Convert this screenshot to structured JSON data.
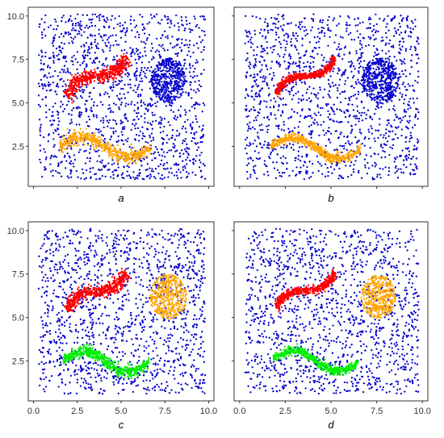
{
  "chart_data": [
    {
      "type": "scatter",
      "label": "a",
      "xlim": [
        -0.3,
        10.3
      ],
      "ylim": [
        0.2,
        10.5
      ],
      "x_ticks": [
        "0.0",
        "2.5",
        "5.0",
        "7.5",
        "10.0"
      ],
      "y_ticks": [
        "2.5",
        "5.0",
        "7.5",
        "10.0"
      ],
      "show_x_tick_labels": false,
      "show_y_tick_labels": true,
      "grid": false,
      "noise_color": "#0000cc",
      "clusters": [
        {
          "shape": "worm",
          "color": "#ff0000",
          "start": [
            1.9,
            5.4
          ],
          "end": [
            5.3,
            7.7
          ],
          "amp": 0.35,
          "spread": 0.45
        },
        {
          "shape": "blob",
          "color": "#0000cc",
          "center": [
            7.7,
            6.3
          ],
          "rx": 1.0,
          "ry": 1.3
        },
        {
          "shape": "worm",
          "color": "#ffa500",
          "start": [
            1.5,
            2.5
          ],
          "end": [
            6.7,
            2.4
          ],
          "amp": 0.55,
          "spread": 0.42
        }
      ]
    },
    {
      "type": "scatter",
      "label": "b",
      "xlim": [
        -0.3,
        10.3
      ],
      "ylim": [
        0.2,
        10.5
      ],
      "x_ticks": [
        "0.0",
        "2.5",
        "5.0",
        "7.5",
        "10.0"
      ],
      "y_ticks": [
        "2.5",
        "5.0",
        "7.5",
        "10.0"
      ],
      "show_x_tick_labels": false,
      "show_y_tick_labels": false,
      "grid": false,
      "noise_color": "#0000cc",
      "clusters": [
        {
          "shape": "worm",
          "color": "#ff0000",
          "start": [
            2.0,
            5.5
          ],
          "end": [
            5.2,
            7.6
          ],
          "amp": 0.35,
          "spread": 0.22
        },
        {
          "shape": "blob",
          "color": "#0000cc",
          "center": [
            7.7,
            6.3
          ],
          "rx": 1.0,
          "ry": 1.3
        },
        {
          "shape": "worm",
          "color": "#ffa500",
          "start": [
            1.7,
            2.5
          ],
          "end": [
            6.6,
            2.3
          ],
          "amp": 0.55,
          "spread": 0.28
        }
      ]
    },
    {
      "type": "scatter",
      "label": "c",
      "xlim": [
        -0.3,
        10.3
      ],
      "ylim": [
        0.2,
        10.5
      ],
      "x_ticks": [
        "0.0",
        "2.5",
        "5.0",
        "7.5",
        "10.0"
      ],
      "y_ticks": [
        "2.5",
        "5.0",
        "7.5",
        "10.0"
      ],
      "show_x_tick_labels": true,
      "show_y_tick_labels": true,
      "grid": false,
      "noise_color": "#0000cc",
      "clusters": [
        {
          "shape": "worm",
          "color": "#ff0000",
          "start": [
            1.9,
            5.4
          ],
          "end": [
            5.3,
            7.6
          ],
          "amp": 0.35,
          "spread": 0.38
        },
        {
          "shape": "blob",
          "color": "#ffa500",
          "center": [
            7.7,
            6.2
          ],
          "rx": 1.05,
          "ry": 1.3
        },
        {
          "shape": "worm",
          "color": "#00ee00",
          "start": [
            1.7,
            2.5
          ],
          "end": [
            6.6,
            2.4
          ],
          "amp": 0.55,
          "spread": 0.36
        }
      ]
    },
    {
      "type": "scatter",
      "label": "d",
      "xlim": [
        -0.3,
        10.3
      ],
      "ylim": [
        0.2,
        10.5
      ],
      "x_ticks": [
        "0.0",
        "2.5",
        "5.0",
        "7.5",
        "10.0"
      ],
      "y_ticks": [
        "2.5",
        "5.0",
        "7.5",
        "10.0"
      ],
      "show_x_tick_labels": true,
      "show_y_tick_labels": false,
      "grid": false,
      "noise_color": "#0000cc",
      "clusters": [
        {
          "shape": "worm",
          "color": "#ff0000",
          "start": [
            2.0,
            5.5
          ],
          "end": [
            5.2,
            7.6
          ],
          "amp": 0.35,
          "spread": 0.25
        },
        {
          "shape": "blob",
          "color": "#ffa500",
          "center": [
            7.6,
            6.2
          ],
          "rx": 0.95,
          "ry": 1.25
        },
        {
          "shape": "worm",
          "color": "#00ee00",
          "start": [
            1.8,
            2.6
          ],
          "end": [
            6.5,
            2.4
          ],
          "amp": 0.55,
          "spread": 0.28
        }
      ]
    }
  ]
}
